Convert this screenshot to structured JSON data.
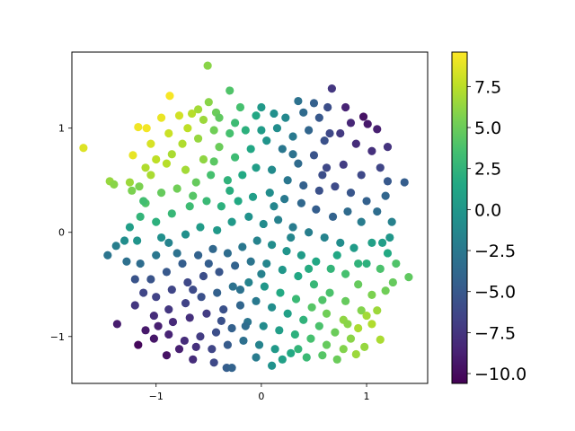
{
  "chart_data": {
    "type": "scatter",
    "xlim": [
      -1.8,
      1.58
    ],
    "ylim": [
      -1.45,
      1.73
    ],
    "x_ticks": [
      -1,
      0,
      1
    ],
    "y_ticks": [
      -1,
      0,
      1
    ],
    "x_tick_labels": [
      "−1",
      "0",
      "1"
    ],
    "y_tick_labels": [
      "−1",
      "0",
      "1"
    ],
    "colorbar": {
      "colormap": "viridis",
      "range": [
        -10.6,
        9.6
      ],
      "ticks": [
        7.5,
        5.0,
        2.5,
        0.0,
        -2.5,
        -5.0,
        -7.5,
        -10.0
      ],
      "tick_labels": [
        "7.5",
        "5.0",
        "2.5",
        "0.0",
        "−2.5",
        "−5.0",
        "−7.5",
        "−10.0"
      ]
    },
    "points": [
      {
        "x": -1.69,
        "y": 0.81,
        "c": 8.6
      },
      {
        "x": -1.22,
        "y": 0.74,
        "c": 8.9
      },
      {
        "x": -1.17,
        "y": 1.01,
        "c": 9.2
      },
      {
        "x": -1.09,
        "y": 1.0,
        "c": 9.3
      },
      {
        "x": -0.87,
        "y": 1.31,
        "c": 9.4
      },
      {
        "x": -0.95,
        "y": 1.1,
        "c": 9.0
      },
      {
        "x": -1.05,
        "y": 0.85,
        "c": 8.4
      },
      {
        "x": -0.88,
        "y": 0.95,
        "c": 8.0
      },
      {
        "x": -0.78,
        "y": 1.12,
        "c": 8.2
      },
      {
        "x": -0.66,
        "y": 1.14,
        "c": 7.4
      },
      {
        "x": -0.55,
        "y": 1.08,
        "c": 6.6
      },
      {
        "x": -0.51,
        "y": 1.6,
        "c": 6.0
      },
      {
        "x": -0.3,
        "y": 1.36,
        "c": 4.0
      },
      {
        "x": -0.43,
        "y": 1.15,
        "c": 5.0
      },
      {
        "x": -0.2,
        "y": 1.2,
        "c": 3.6
      },
      {
        "x": -0.05,
        "y": 1.12,
        "c": 1.4
      },
      {
        "x": 0.12,
        "y": 1.14,
        "c": -0.6
      },
      {
        "x": 0.23,
        "y": 1.1,
        "c": -1.2
      },
      {
        "x": 0.35,
        "y": 1.26,
        "c": -3.0
      },
      {
        "x": 0.5,
        "y": 1.24,
        "c": -4.4
      },
      {
        "x": 0.63,
        "y": 1.2,
        "c": -5.8
      },
      {
        "x": 0.67,
        "y": 1.38,
        "c": -7.4
      },
      {
        "x": 0.8,
        "y": 1.2,
        "c": -8.6
      },
      {
        "x": 0.97,
        "y": 1.11,
        "c": -9.6
      },
      {
        "x": 1.01,
        "y": 1.04,
        "c": -9.2
      },
      {
        "x": 1.1,
        "y": 0.99,
        "c": -8.8
      },
      {
        "x": 1.2,
        "y": 0.82,
        "c": -7.6
      },
      {
        "x": 1.05,
        "y": 0.78,
        "c": -7.8
      },
      {
        "x": 1.13,
        "y": 0.62,
        "c": -6.4
      },
      {
        "x": 1.36,
        "y": 0.48,
        "c": -4.6
      },
      {
        "x": 1.2,
        "y": 0.49,
        "c": -5.0
      },
      {
        "x": 0.95,
        "y": 0.55,
        "c": -6.2
      },
      {
        "x": 0.78,
        "y": 0.65,
        "c": -7.0
      },
      {
        "x": 0.62,
        "y": 0.62,
        "c": -6.2
      },
      {
        "x": 0.5,
        "y": 0.74,
        "c": -5.4
      },
      {
        "x": 0.35,
        "y": 0.66,
        "c": -3.6
      },
      {
        "x": 0.2,
        "y": 0.8,
        "c": -2.6
      },
      {
        "x": 0.05,
        "y": 0.88,
        "c": -0.2
      },
      {
        "x": -0.1,
        "y": 0.8,
        "c": 1.4
      },
      {
        "x": -0.25,
        "y": 0.72,
        "c": 3.2
      },
      {
        "x": -0.4,
        "y": 0.82,
        "c": 5.0
      },
      {
        "x": -0.55,
        "y": 0.7,
        "c": 6.2
      },
      {
        "x": -0.72,
        "y": 0.6,
        "c": 6.8
      },
      {
        "x": -0.9,
        "y": 0.66,
        "c": 7.4
      },
      {
        "x": -1.05,
        "y": 0.55,
        "c": 7.0
      },
      {
        "x": -1.25,
        "y": 0.48,
        "c": 6.6
      },
      {
        "x": -1.44,
        "y": 0.49,
        "c": 6.4
      },
      {
        "x": -1.4,
        "y": 0.46,
        "c": 6.0
      },
      {
        "x": -1.16,
        "y": 0.44,
        "c": 5.6
      },
      {
        "x": -1.23,
        "y": 0.4,
        "c": 5.6
      },
      {
        "x": -1.1,
        "y": 0.28,
        "c": 4.0
      },
      {
        "x": -0.95,
        "y": 0.38,
        "c": 4.8
      },
      {
        "x": -0.8,
        "y": 0.42,
        "c": 5.2
      },
      {
        "x": -0.62,
        "y": 0.48,
        "c": 4.8
      },
      {
        "x": -0.48,
        "y": 0.55,
        "c": 3.6
      },
      {
        "x": -0.32,
        "y": 0.5,
        "c": 2.4
      },
      {
        "x": -0.18,
        "y": 0.55,
        "c": 1.6
      },
      {
        "x": -0.05,
        "y": 0.62,
        "c": 0.6
      },
      {
        "x": 0.1,
        "y": 0.6,
        "c": -1.0
      },
      {
        "x": 0.25,
        "y": 0.5,
        "c": -2.6
      },
      {
        "x": 0.4,
        "y": 0.45,
        "c": -4.4
      },
      {
        "x": 0.55,
        "y": 0.4,
        "c": -5.6
      },
      {
        "x": 0.7,
        "y": 0.44,
        "c": -6.0
      },
      {
        "x": 0.85,
        "y": 0.38,
        "c": -5.2
      },
      {
        "x": 1.0,
        "y": 0.3,
        "c": -4.4
      },
      {
        "x": 1.1,
        "y": 0.2,
        "c": -3.4
      },
      {
        "x": 1.24,
        "y": 0.1,
        "c": -1.8
      },
      {
        "x": 1.2,
        "y": -0.2,
        "c": 1.6
      },
      {
        "x": 1.05,
        "y": -0.1,
        "c": 0.8
      },
      {
        "x": 0.95,
        "y": 0.1,
        "c": -2.2
      },
      {
        "x": 0.82,
        "y": 0.2,
        "c": -3.6
      },
      {
        "x": 0.68,
        "y": 0.15,
        "c": -4.2
      },
      {
        "x": 0.52,
        "y": 0.22,
        "c": -4.6
      },
      {
        "x": 0.38,
        "y": 0.28,
        "c": -3.8
      },
      {
        "x": 0.22,
        "y": 0.32,
        "c": -2.4
      },
      {
        "x": 0.08,
        "y": 0.38,
        "c": -0.8
      },
      {
        "x": -0.08,
        "y": 0.34,
        "c": 0.6
      },
      {
        "x": -0.22,
        "y": 0.3,
        "c": 1.6
      },
      {
        "x": -0.38,
        "y": 0.25,
        "c": 2.2
      },
      {
        "x": -0.52,
        "y": 0.3,
        "c": 3.0
      },
      {
        "x": -0.68,
        "y": 0.25,
        "c": 3.2
      },
      {
        "x": -0.85,
        "y": 0.18,
        "c": 2.8
      },
      {
        "x": -1.0,
        "y": 0.1,
        "c": 2.2
      },
      {
        "x": -1.15,
        "y": 0.15,
        "c": 2.6
      },
      {
        "x": -1.18,
        "y": -0.08,
        "c": -0.2
      },
      {
        "x": -1.3,
        "y": -0.08,
        "c": -0.8
      },
      {
        "x": -1.38,
        "y": -0.13,
        "c": -2.0
      },
      {
        "x": -1.46,
        "y": -0.22,
        "c": -2.8
      },
      {
        "x": -1.15,
        "y": -0.3,
        "c": -3.4
      },
      {
        "x": -1.0,
        "y": -0.22,
        "c": -2.6
      },
      {
        "x": -0.88,
        "y": -0.1,
        "c": -1.6
      },
      {
        "x": -0.72,
        "y": -0.02,
        "c": -0.6
      },
      {
        "x": -0.58,
        "y": 0.05,
        "c": 0.4
      },
      {
        "x": -0.42,
        "y": 0.02,
        "c": 0.2
      },
      {
        "x": -0.28,
        "y": 0.1,
        "c": 0.2
      },
      {
        "x": -0.12,
        "y": 0.15,
        "c": -0.4
      },
      {
        "x": 0.02,
        "y": 0.08,
        "c": -1.0
      },
      {
        "x": 0.16,
        "y": 0.12,
        "c": -1.8
      },
      {
        "x": 0.3,
        "y": 0.05,
        "c": -2.2
      },
      {
        "x": 0.45,
        "y": 0.0,
        "c": -2.0
      },
      {
        "x": 0.6,
        "y": -0.05,
        "c": -1.6
      },
      {
        "x": 0.75,
        "y": -0.1,
        "c": -0.8
      },
      {
        "x": 0.88,
        "y": -0.15,
        "c": 0.4
      },
      {
        "x": 1.0,
        "y": -0.3,
        "c": 2.2
      },
      {
        "x": 1.13,
        "y": -0.35,
        "c": 3.8
      },
      {
        "x": 1.4,
        "y": -0.43,
        "c": 4.6
      },
      {
        "x": 1.28,
        "y": -0.3,
        "c": 4.0
      },
      {
        "x": 1.25,
        "y": -0.48,
        "c": 4.8
      },
      {
        "x": 1.18,
        "y": -0.56,
        "c": 5.2
      },
      {
        "x": 1.05,
        "y": -0.6,
        "c": 5.6
      },
      {
        "x": 0.92,
        "y": -0.5,
        "c": 4.8
      },
      {
        "x": 0.8,
        "y": -0.4,
        "c": 3.6
      },
      {
        "x": 0.66,
        "y": -0.35,
        "c": 2.6
      },
      {
        "x": 0.52,
        "y": -0.28,
        "c": 1.4
      },
      {
        "x": 0.38,
        "y": -0.22,
        "c": 0.4
      },
      {
        "x": 0.24,
        "y": -0.18,
        "c": -0.2
      },
      {
        "x": 0.1,
        "y": -0.12,
        "c": -0.8
      },
      {
        "x": -0.04,
        "y": -0.08,
        "c": -1.6
      },
      {
        "x": -0.18,
        "y": -0.14,
        "c": -2.6
      },
      {
        "x": -0.32,
        "y": -0.2,
        "c": -3.4
      },
      {
        "x": -0.46,
        "y": -0.16,
        "c": -3.8
      },
      {
        "x": -0.6,
        "y": -0.22,
        "c": -4.2
      },
      {
        "x": -0.75,
        "y": -0.3,
        "c": -4.6
      },
      {
        "x": -0.9,
        "y": -0.38,
        "c": -5.0
      },
      {
        "x": -1.05,
        "y": -0.45,
        "c": -5.4
      },
      {
        "x": -1.12,
        "y": -0.58,
        "c": -6.4
      },
      {
        "x": -1.0,
        "y": -0.62,
        "c": -6.6
      },
      {
        "x": -0.85,
        "y": -0.55,
        "c": -6.4
      },
      {
        "x": -0.7,
        "y": -0.48,
        "c": -6.2
      },
      {
        "x": -0.55,
        "y": -0.42,
        "c": -5.8
      },
      {
        "x": -0.4,
        "y": -0.38,
        "c": -5.2
      },
      {
        "x": -0.25,
        "y": -0.32,
        "c": -4.2
      },
      {
        "x": -0.1,
        "y": -0.28,
        "c": -2.8
      },
      {
        "x": 0.05,
        "y": -0.3,
        "c": -1.4
      },
      {
        "x": 0.2,
        "y": -0.36,
        "c": 0.0
      },
      {
        "x": 0.35,
        "y": -0.42,
        "c": 1.4
      },
      {
        "x": 0.5,
        "y": -0.5,
        "c": 2.8
      },
      {
        "x": 0.65,
        "y": -0.58,
        "c": 3.8
      },
      {
        "x": 0.8,
        "y": -0.66,
        "c": 4.8
      },
      {
        "x": 0.95,
        "y": -0.75,
        "c": 5.8
      },
      {
        "x": 1.1,
        "y": -0.75,
        "c": 6.6
      },
      {
        "x": 1.05,
        "y": -0.88,
        "c": 7.2
      },
      {
        "x": 0.92,
        "y": -0.92,
        "c": 7.0
      },
      {
        "x": 0.78,
        "y": -0.84,
        "c": 6.2
      },
      {
        "x": 0.62,
        "y": -0.78,
        "c": 5.2
      },
      {
        "x": 0.48,
        "y": -0.72,
        "c": 4.2
      },
      {
        "x": 0.33,
        "y": -0.64,
        "c": 3.0
      },
      {
        "x": 0.18,
        "y": -0.58,
        "c": 1.6
      },
      {
        "x": 0.03,
        "y": -0.52,
        "c": 0.0
      },
      {
        "x": -0.12,
        "y": -0.48,
        "c": -1.6
      },
      {
        "x": -0.27,
        "y": -0.52,
        "c": -3.0
      },
      {
        "x": -0.42,
        "y": -0.58,
        "c": -4.4
      },
      {
        "x": -0.57,
        "y": -0.62,
        "c": -5.6
      },
      {
        "x": -0.72,
        "y": -0.68,
        "c": -6.6
      },
      {
        "x": -0.88,
        "y": -0.74,
        "c": -7.4
      },
      {
        "x": -1.02,
        "y": -0.8,
        "c": -8.0
      },
      {
        "x": -1.2,
        "y": -0.7,
        "c": -7.4
      },
      {
        "x": -1.37,
        "y": -0.88,
        "c": -9.0
      },
      {
        "x": -1.1,
        "y": -0.94,
        "c": -9.2
      },
      {
        "x": -0.98,
        "y": -0.9,
        "c": -8.8
      },
      {
        "x": -0.84,
        "y": -0.86,
        "c": -8.2
      },
      {
        "x": -0.68,
        "y": -0.82,
        "c": -7.8
      },
      {
        "x": -0.52,
        "y": -0.78,
        "c": -7.0
      },
      {
        "x": -0.36,
        "y": -0.74,
        "c": -5.6
      },
      {
        "x": -0.2,
        "y": -0.7,
        "c": -4.0
      },
      {
        "x": -0.05,
        "y": -0.66,
        "c": -2.4
      },
      {
        "x": 0.1,
        "y": -0.72,
        "c": -0.8
      },
      {
        "x": 0.25,
        "y": -0.78,
        "c": 0.8
      },
      {
        "x": 0.4,
        "y": -0.84,
        "c": 2.4
      },
      {
        "x": 0.55,
        "y": -0.9,
        "c": 3.8
      },
      {
        "x": 0.7,
        "y": -0.96,
        "c": 5.0
      },
      {
        "x": 0.85,
        "y": -1.02,
        "c": 6.0
      },
      {
        "x": 0.98,
        "y": -1.1,
        "c": 6.4
      },
      {
        "x": 1.13,
        "y": -1.03,
        "c": 7.0
      },
      {
        "x": 0.9,
        "y": -1.17,
        "c": 6.6
      },
      {
        "x": 0.78,
        "y": -1.12,
        "c": 5.8
      },
      {
        "x": 0.62,
        "y": -1.08,
        "c": 4.8
      },
      {
        "x": 0.47,
        "y": -1.02,
        "c": 3.6
      },
      {
        "x": 0.32,
        "y": -0.98,
        "c": 2.2
      },
      {
        "x": 0.17,
        "y": -0.94,
        "c": 0.6
      },
      {
        "x": 0.02,
        "y": -0.9,
        "c": -1.0
      },
      {
        "x": -0.13,
        "y": -0.86,
        "c": -2.8
      },
      {
        "x": -0.28,
        "y": -0.92,
        "c": -4.4
      },
      {
        "x": -0.43,
        "y": -0.96,
        "c": -5.8
      },
      {
        "x": -0.58,
        "y": -1.0,
        "c": -7.0
      },
      {
        "x": -0.73,
        "y": -1.04,
        "c": -8.0
      },
      {
        "x": -0.88,
        "y": -0.98,
        "c": -8.6
      },
      {
        "x": -1.02,
        "y": -1.02,
        "c": -9.4
      },
      {
        "x": -1.17,
        "y": -1.08,
        "c": -10.2
      },
      {
        "x": -0.78,
        "y": -1.12,
        "c": -8.8
      },
      {
        "x": -0.62,
        "y": -1.1,
        "c": -7.8
      },
      {
        "x": -0.47,
        "y": -1.12,
        "c": -6.4
      },
      {
        "x": -0.32,
        "y": -1.08,
        "c": -4.8
      },
      {
        "x": -0.17,
        "y": -1.04,
        "c": -3.2
      },
      {
        "x": -0.02,
        "y": -1.08,
        "c": -1.6
      },
      {
        "x": 0.13,
        "y": -1.12,
        "c": 0.2
      },
      {
        "x": 0.28,
        "y": -1.16,
        "c": 1.6
      },
      {
        "x": 0.43,
        "y": -1.2,
        "c": 3.0
      },
      {
        "x": 0.58,
        "y": -1.18,
        "c": 4.2
      },
      {
        "x": 0.72,
        "y": -1.22,
        "c": 5.0
      },
      {
        "x": -0.33,
        "y": -1.3,
        "c": -4.6
      },
      {
        "x": -0.28,
        "y": -1.3,
        "c": -4.2
      },
      {
        "x": -0.05,
        "y": -1.2,
        "c": -2.2
      },
      {
        "x": 0.2,
        "y": -1.22,
        "c": 0.8
      },
      {
        "x": -0.9,
        "y": -1.18,
        "c": -9.6
      },
      {
        "x": -0.65,
        "y": -1.22,
        "c": -8.0
      },
      {
        "x": -0.45,
        "y": -1.25,
        "c": -6.2
      },
      {
        "x": 0.35,
        "y": -1.12,
        "c": 2.6
      },
      {
        "x": 1.0,
        "y": -0.8,
        "c": 6.8
      },
      {
        "x": 0.15,
        "y": 1.0,
        "c": -0.8
      },
      {
        "x": 0.3,
        "y": 0.92,
        "c": -2.4
      },
      {
        "x": 0.45,
        "y": 0.98,
        "c": -4.0
      },
      {
        "x": 0.6,
        "y": 0.88,
        "c": -5.6
      },
      {
        "x": 0.75,
        "y": 0.95,
        "c": -7.2
      },
      {
        "x": 0.9,
        "y": 0.85,
        "c": -8.0
      },
      {
        "x": -0.15,
        "y": 0.98,
        "c": 2.2
      },
      {
        "x": -0.3,
        "y": 0.95,
        "c": 3.6
      },
      {
        "x": -0.45,
        "y": 0.98,
        "c": 5.2
      },
      {
        "x": -0.6,
        "y": 0.9,
        "c": 6.4
      },
      {
        "x": -0.75,
        "y": 0.85,
        "c": 7.2
      },
      {
        "x": -1.0,
        "y": 0.7,
        "c": 7.6
      },
      {
        "x": -1.1,
        "y": 0.62,
        "c": 7.2
      },
      {
        "x": -0.7,
        "y": 1.0,
        "c": 7.6
      },
      {
        "x": -0.5,
        "y": 1.25,
        "c": 6.0
      },
      {
        "x": -0.6,
        "y": 1.18,
        "c": 6.8
      },
      {
        "x": -0.4,
        "y": 1.1,
        "c": 4.6
      },
      {
        "x": -0.25,
        "y": 1.05,
        "c": 3.2
      },
      {
        "x": 0.0,
        "y": 0.98,
        "c": 0.4
      },
      {
        "x": 0.4,
        "y": 1.15,
        "c": -3.6
      },
      {
        "x": 0.55,
        "y": 1.1,
        "c": -5.0
      },
      {
        "x": 0.85,
        "y": 1.05,
        "c": -8.4
      },
      {
        "x": 1.18,
        "y": 0.35,
        "c": -4.0
      },
      {
        "x": 1.15,
        "y": -0.1,
        "c": 0.6
      },
      {
        "x": 1.22,
        "y": -0.05,
        "c": 0.0
      },
      {
        "x": -1.28,
        "y": -0.28,
        "c": -3.2
      },
      {
        "x": -1.2,
        "y": -0.45,
        "c": -5.4
      },
      {
        "x": -1.25,
        "y": 0.05,
        "c": 0.6
      },
      {
        "x": -1.12,
        "y": 0.3,
        "c": 3.4
      },
      {
        "x": -0.95,
        "y": -0.05,
        "c": -0.6
      },
      {
        "x": 0.92,
        "y": -0.3,
        "c": 2.4
      },
      {
        "x": 0.72,
        "y": -0.22,
        "c": 1.4
      },
      {
        "x": 0.58,
        "y": -0.65,
        "c": 4.0
      },
      {
        "x": -0.15,
        "y": -0.9,
        "c": -3.4
      },
      {
        "x": -0.38,
        "y": -0.85,
        "c": -5.6
      },
      {
        "x": -0.65,
        "y": -0.55,
        "c": -6.0
      },
      {
        "x": -0.5,
        "y": -0.3,
        "c": -4.6
      },
      {
        "x": 0.0,
        "y": -0.4,
        "c": -1.8
      },
      {
        "x": 0.28,
        "y": -0.05,
        "c": -1.4
      },
      {
        "x": -0.3,
        "y": 0.4,
        "c": 2.0
      },
      {
        "x": 0.3,
        "y": 0.75,
        "c": -3.0
      },
      {
        "x": 0.65,
        "y": 0.95,
        "c": -6.2
      },
      {
        "x": -0.85,
        "y": 0.75,
        "c": 7.0
      },
      {
        "x": -0.65,
        "y": 0.35,
        "c": 4.2
      },
      {
        "x": 0.45,
        "y": -0.35,
        "c": 1.8
      },
      {
        "x": 0.82,
        "y": -0.88,
        "c": 6.0
      },
      {
        "x": -0.2,
        "y": -0.55,
        "c": -3.0
      },
      {
        "x": 0.12,
        "y": 0.25,
        "c": -1.4
      },
      {
        "x": -0.45,
        "y": 0.68,
        "c": 4.4
      },
      {
        "x": 0.58,
        "y": 0.55,
        "c": -5.8
      },
      {
        "x": -0.8,
        "y": -0.2,
        "c": -3.0
      },
      {
        "x": 0.0,
        "y": 1.2,
        "c": 0.2
      },
      {
        "x": 0.1,
        "y": -1.28,
        "c": -0.4
      }
    ]
  }
}
